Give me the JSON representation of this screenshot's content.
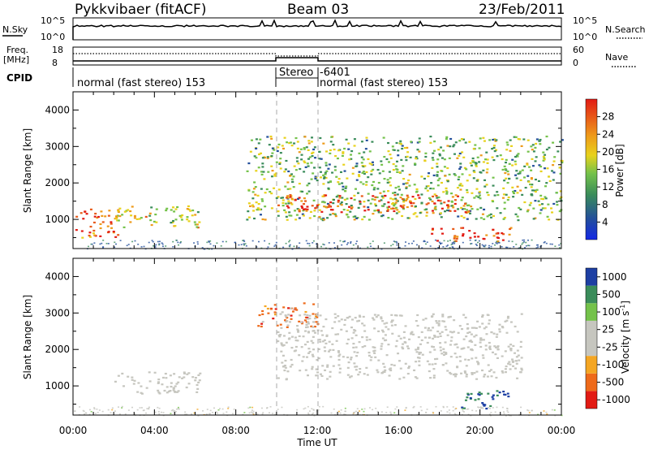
{
  "header": {
    "station": "Pykkvibaer (fitACF)",
    "beam": "Beam 03",
    "date": "23/Feb/2011"
  },
  "noise_panel": {
    "left_label": "N.Sky",
    "right_label": "N.Search",
    "left_ticks": [
      "10^5",
      "10^0"
    ],
    "right_ticks": [
      "10^5",
      "10^0"
    ]
  },
  "freq_panel": {
    "left_label_line1": "Freq.",
    "left_label_line2": "[MHz]",
    "right_label": "Nave",
    "left_ticks": [
      "18",
      "8"
    ],
    "right_ticks": [
      "60",
      "0"
    ]
  },
  "cpid": {
    "label": "CPID",
    "segments": [
      "normal (fast stereo) 153",
      "Stereo",
      "-6401",
      "normal (fast stereo) 153"
    ]
  },
  "x_axis": {
    "label": "Time UT",
    "ticks": [
      "00:00",
      "04:00",
      "08:00",
      "12:00",
      "16:00",
      "20:00",
      "00:00"
    ]
  },
  "colors": {
    "power": [
      "#1428e6",
      "#234f9b",
      "#3a8c5a",
      "#74c24a",
      "#e8d21c",
      "#ee9a1a",
      "#e85a18",
      "#e21b14"
    ],
    "velocity": [
      "#e21b14",
      "#ee6a1a",
      "#f4a623",
      "#c6c6bf",
      "#c6c6bf",
      "#74c24a",
      "#3a8c5a",
      "#1d3fa3"
    ]
  },
  "chart_data": [
    {
      "type": "heatmap",
      "title": "",
      "xlabel": "",
      "ylabel": "Slant Range [km]",
      "xlim": [
        "00:00",
        "24:00"
      ],
      "ylim": [
        200,
        4500
      ],
      "y_ticks": [
        1000,
        2000,
        3000,
        4000
      ],
      "colorbar": {
        "label": "Power [dB]",
        "ticks": [
          "28",
          "24",
          "20",
          "16",
          "12",
          "8",
          "4"
        ],
        "range": [
          0,
          32
        ]
      },
      "features": [
        {
          "time_start": 0.0,
          "time_end": 2.2,
          "range_start": 500,
          "range_end": 1300,
          "power_db": 26
        },
        {
          "time_start": 2.0,
          "time_end": 6.2,
          "range_start": 800,
          "range_end": 1400,
          "power_db": 18
        },
        {
          "time_start": 8.5,
          "time_end": 24.0,
          "range_start": 1000,
          "range_end": 3300,
          "power_db": 14
        },
        {
          "time_start": 10.0,
          "time_end": 20.0,
          "range_start": 1200,
          "range_end": 1700,
          "power_db": 26
        },
        {
          "time_start": 17.5,
          "time_end": 21.5,
          "range_start": 400,
          "range_end": 800,
          "power_db": 27
        }
      ]
    },
    {
      "type": "heatmap",
      "title": "",
      "xlabel": "Time UT",
      "ylabel": "Slant Range [km]",
      "xlim": [
        "00:00",
        "24:00"
      ],
      "ylim": [
        200,
        4500
      ],
      "y_ticks": [
        1000,
        2000,
        3000,
        4000
      ],
      "colorbar": {
        "label": "Velocity [m s^-1]",
        "ticks": [
          "1000",
          "500",
          "100",
          "25",
          "-25",
          "-100",
          "-500",
          "-1000"
        ],
        "range": [
          -1200,
          1200
        ]
      },
      "features": [
        {
          "time_start": 2.0,
          "time_end": 6.2,
          "range_start": 800,
          "range_end": 1400,
          "velocity": 0
        },
        {
          "time_start": 9.0,
          "time_end": 12.0,
          "range_start": 2600,
          "range_end": 3300,
          "velocity": -300
        },
        {
          "time_start": 10.0,
          "time_end": 22.0,
          "range_start": 1200,
          "range_end": 3000,
          "velocity": 0
        },
        {
          "time_start": 19.0,
          "time_end": 21.5,
          "range_start": 400,
          "range_end": 900,
          "velocity": 600
        }
      ]
    }
  ]
}
